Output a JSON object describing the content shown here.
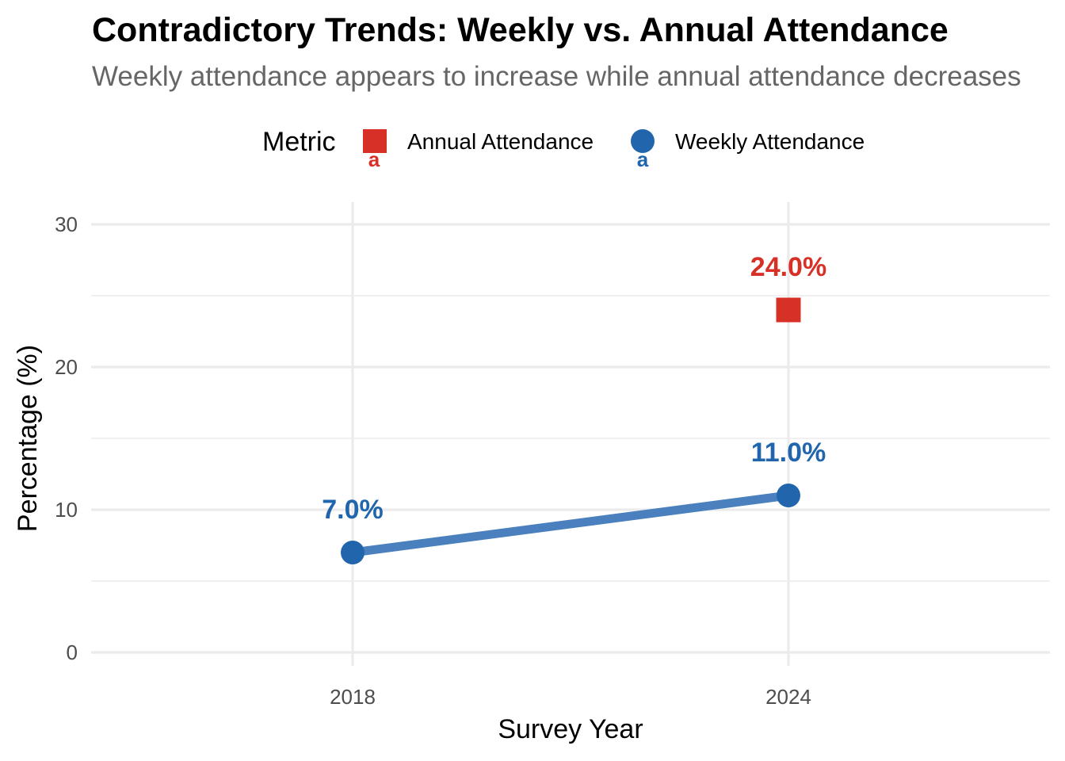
{
  "chart_data": {
    "type": "line",
    "title": "Contradictory Trends: Weekly vs. Annual Attendance",
    "subtitle": "Weekly attendance appears to increase while annual attendance decreases",
    "xlabel": "Survey Year",
    "ylabel": "Percentage (%)",
    "x": [
      2018,
      2024
    ],
    "xticks": [
      "2018",
      "2024"
    ],
    "yticks": [
      "0",
      "10",
      "20",
      "30"
    ],
    "ylim": [
      0,
      30
    ],
    "grid": true,
    "legend": {
      "title": "Metric",
      "position": "top",
      "entries": [
        {
          "label": "Annual Attendance",
          "shape": "square",
          "color": "#d73027"
        },
        {
          "label": "Weekly Attendance",
          "shape": "circle",
          "color": "#2166ac"
        }
      ],
      "key_text": "a"
    },
    "series": [
      {
        "name": "Annual Attendance",
        "color": "#d73027",
        "marker": "square",
        "line": false,
        "points": [
          {
            "x": 2024,
            "y": 24.0,
            "label": "24.0%"
          }
        ]
      },
      {
        "name": "Weekly Attendance",
        "color": "#2166ac",
        "line_color": "#4a80bd",
        "marker": "circle",
        "line": true,
        "points": [
          {
            "x": 2018,
            "y": 7.0,
            "label": "7.0%"
          },
          {
            "x": 2024,
            "y": 11.0,
            "label": "11.0%"
          }
        ]
      }
    ]
  }
}
